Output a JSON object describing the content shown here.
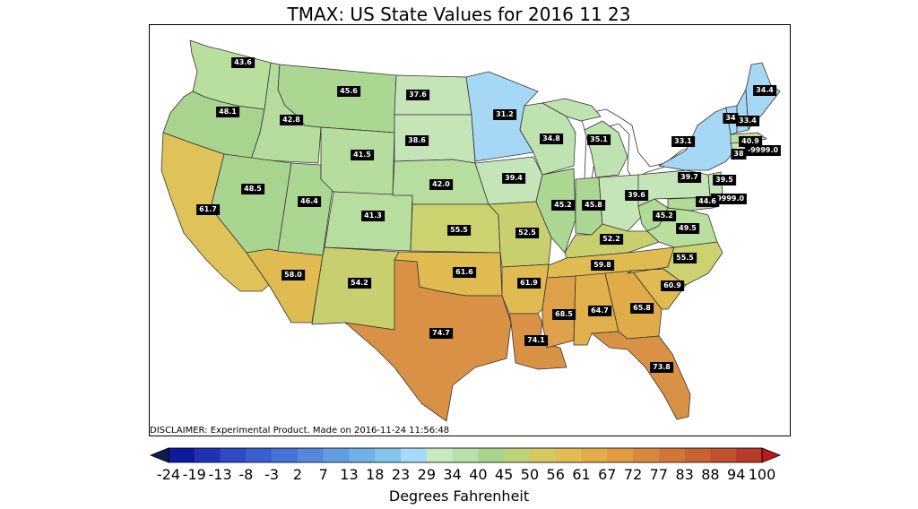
{
  "title": "TMAX: US State Values for 2016 11 23",
  "disclaimer": "DISCLAIMER: Experimental Product. Made on 2016-11-24 11:56:48",
  "colorbar": {
    "label": "Degrees Fahrenheit",
    "ticks": [
      "-24",
      "-19",
      "-13",
      "-8",
      "-3",
      "2",
      "7",
      "13",
      "18",
      "23",
      "29",
      "34",
      "40",
      "45",
      "50",
      "56",
      "61",
      "67",
      "72",
      "77",
      "83",
      "88",
      "94",
      "100"
    ],
    "colors": [
      "#0d1a9e",
      "#1f32b5",
      "#2e4ac6",
      "#3c5fcf",
      "#4773d8",
      "#5588dc",
      "#639ce0",
      "#71afe4",
      "#86c3ec",
      "#a6daf9",
      "#c8e8c0",
      "#b8e0a8",
      "#a8d490",
      "#bcd37a",
      "#d4c860",
      "#e0bc52",
      "#e4ac48",
      "#e09a42",
      "#d8883c",
      "#d07638",
      "#c86432",
      "#c0502e",
      "#b83a2a"
    ],
    "under_color": "#0c2050",
    "over_color": "#c01818"
  },
  "state_values": [
    {
      "state": "WA",
      "value": "43.6"
    },
    {
      "state": "OR",
      "value": "48.1"
    },
    {
      "state": "ID",
      "value": "42.8"
    },
    {
      "state": "MT",
      "value": "45.6"
    },
    {
      "state": "ND",
      "value": "37.6"
    },
    {
      "state": "MN",
      "value": "31.2"
    },
    {
      "state": "SD",
      "value": "38.6"
    },
    {
      "state": "WY",
      "value": "41.5"
    },
    {
      "state": "NV",
      "value": "48.5"
    },
    {
      "state": "CA",
      "value": "61.7"
    },
    {
      "state": "UT",
      "value": "46.4"
    },
    {
      "state": "CO",
      "value": "41.3"
    },
    {
      "state": "NE",
      "value": "42.0"
    },
    {
      "state": "IA",
      "value": "39.4"
    },
    {
      "state": "WI",
      "value": "34.8"
    },
    {
      "state": "MI",
      "value": "35.1"
    },
    {
      "state": "AZ",
      "value": "58.0"
    },
    {
      "state": "NM",
      "value": "54.2"
    },
    {
      "state": "KS",
      "value": "55.5"
    },
    {
      "state": "MO",
      "value": "52.5"
    },
    {
      "state": "IL",
      "value": "45.2"
    },
    {
      "state": "IN",
      "value": "45.8"
    },
    {
      "state": "OH",
      "value": "39.6"
    },
    {
      "state": "PA",
      "value": "39.7"
    },
    {
      "state": "NY",
      "value": "33.1"
    },
    {
      "state": "WV",
      "value": "45.2"
    },
    {
      "state": "VA",
      "value": "49.5"
    },
    {
      "state": "KY",
      "value": "52.2"
    },
    {
      "state": "OK",
      "value": "61.6"
    },
    {
      "state": "TX",
      "value": "74.7"
    },
    {
      "state": "AR",
      "value": "61.9"
    },
    {
      "state": "TN",
      "value": "59.8"
    },
    {
      "state": "NC",
      "value": "55.5"
    },
    {
      "state": "SC",
      "value": "60.9"
    },
    {
      "state": "LA",
      "value": "74.1"
    },
    {
      "state": "MS",
      "value": "68.5"
    },
    {
      "state": "AL",
      "value": "64.7"
    },
    {
      "state": "GA",
      "value": "65.8"
    },
    {
      "state": "FL",
      "value": "73.8"
    },
    {
      "state": "ME",
      "value": "34.4"
    },
    {
      "state": "VT",
      "value": "34"
    },
    {
      "state": "NH",
      "value": "33.4"
    },
    {
      "state": "MA",
      "value": "40.9"
    },
    {
      "state": "CT",
      "value": "38"
    },
    {
      "state": "RI",
      "value": "-9999.0"
    },
    {
      "state": "NJ",
      "value": "39.5"
    },
    {
      "state": "DE",
      "value": "-9999.0"
    },
    {
      "state": "MD",
      "value": "44.6"
    }
  ]
}
